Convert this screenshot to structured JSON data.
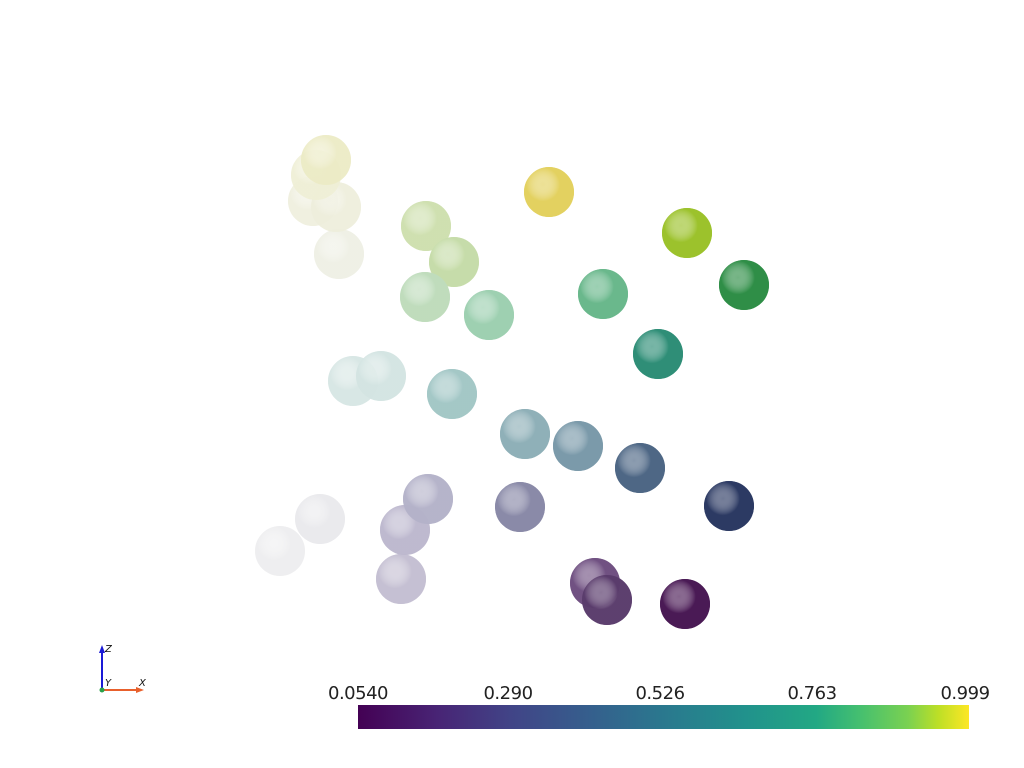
{
  "scalar_bar": {
    "colormap": "viridis",
    "range": [
      0.054,
      0.999
    ],
    "tick_labels": [
      "0.0540",
      "0.290",
      "0.526",
      "0.763",
      "0.999"
    ]
  },
  "axes": {
    "z_label": "Z",
    "y_label": "Y",
    "x_label": "X",
    "colors": {
      "z": "#1a1ad6",
      "x": "#e8602c",
      "y": "#2aa04a"
    }
  },
  "background": "#ffffff"
}
